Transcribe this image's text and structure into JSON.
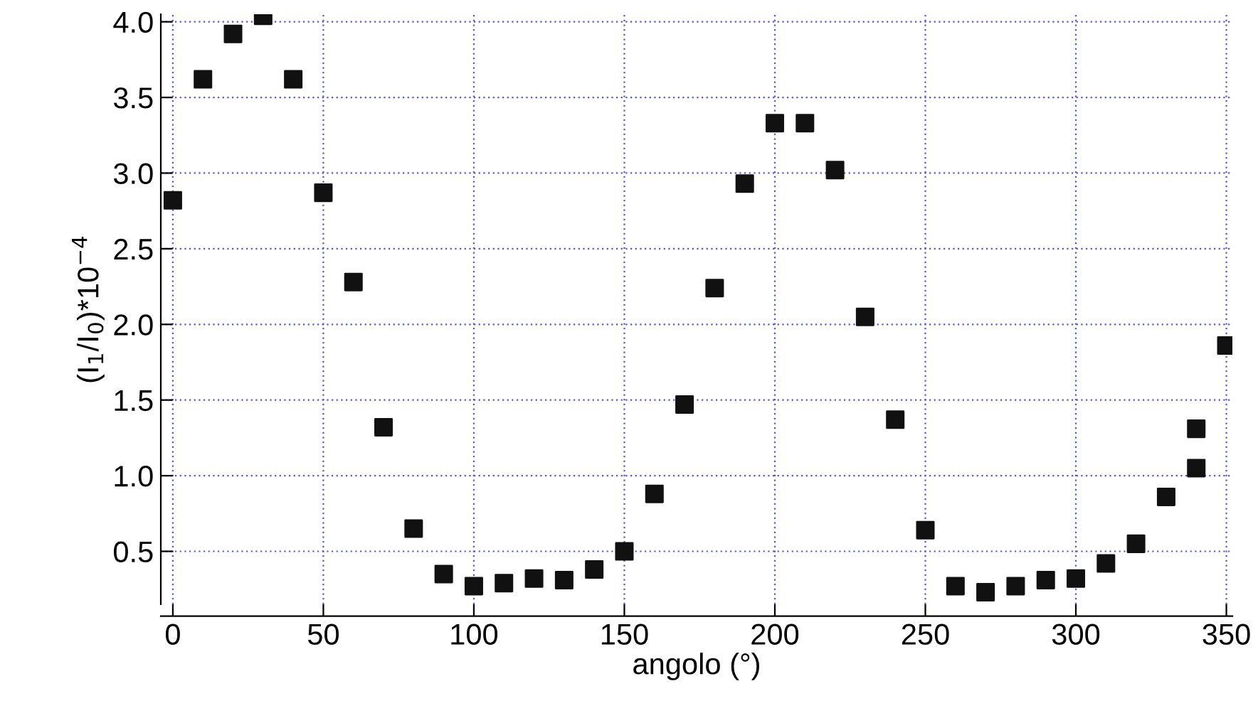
{
  "chart_data": {
    "type": "scatter",
    "xlabel": "angolo (°)",
    "ylabel": "(I$_{1}$/I$_{0}$)*10$^{−4}$",
    "x": [
      0,
      10,
      20,
      30,
      40,
      50,
      60,
      70,
      80,
      90,
      100,
      110,
      120,
      130,
      140,
      150,
      160,
      170,
      180,
      190,
      200,
      210,
      220,
      230,
      240,
      250,
      260,
      270,
      280,
      290,
      300,
      310,
      320,
      330,
      340,
      340,
      350
    ],
    "series": [
      {
        "color": "#111111",
        "values": [
          2.82,
          3.62,
          3.92,
          4.04,
          3.62,
          2.87,
          2.28,
          1.32,
          0.65,
          0.35,
          0.27,
          0.29,
          0.32,
          0.31,
          0.38,
          0.5,
          0.88,
          1.47,
          2.24,
          2.93,
          3.33,
          3.33,
          3.02,
          2.05,
          1.37,
          0.64,
          0.27,
          0.23,
          0.27,
          0.31,
          0.32,
          0.42,
          0.55,
          0.86,
          1.05,
          1.31,
          1.86
        ]
      }
    ],
    "xlim": [
      -4,
      352
    ],
    "ylim": [
      0.15,
      4.05
    ],
    "xticks": [
      0,
      50,
      100,
      150,
      200,
      250,
      300,
      350
    ],
    "yticks": [
      0.5,
      {
        "value": 1,
        "label": "1.0"
      },
      1.5,
      {
        "value": 2,
        "label": "2.0"
      },
      2.5,
      {
        "value": 3,
        "label": "3.0"
      },
      3.5,
      {
        "value": 4,
        "label": "4.0"
      }
    ],
    "grid": true,
    "marker": "square",
    "legend": false
  }
}
